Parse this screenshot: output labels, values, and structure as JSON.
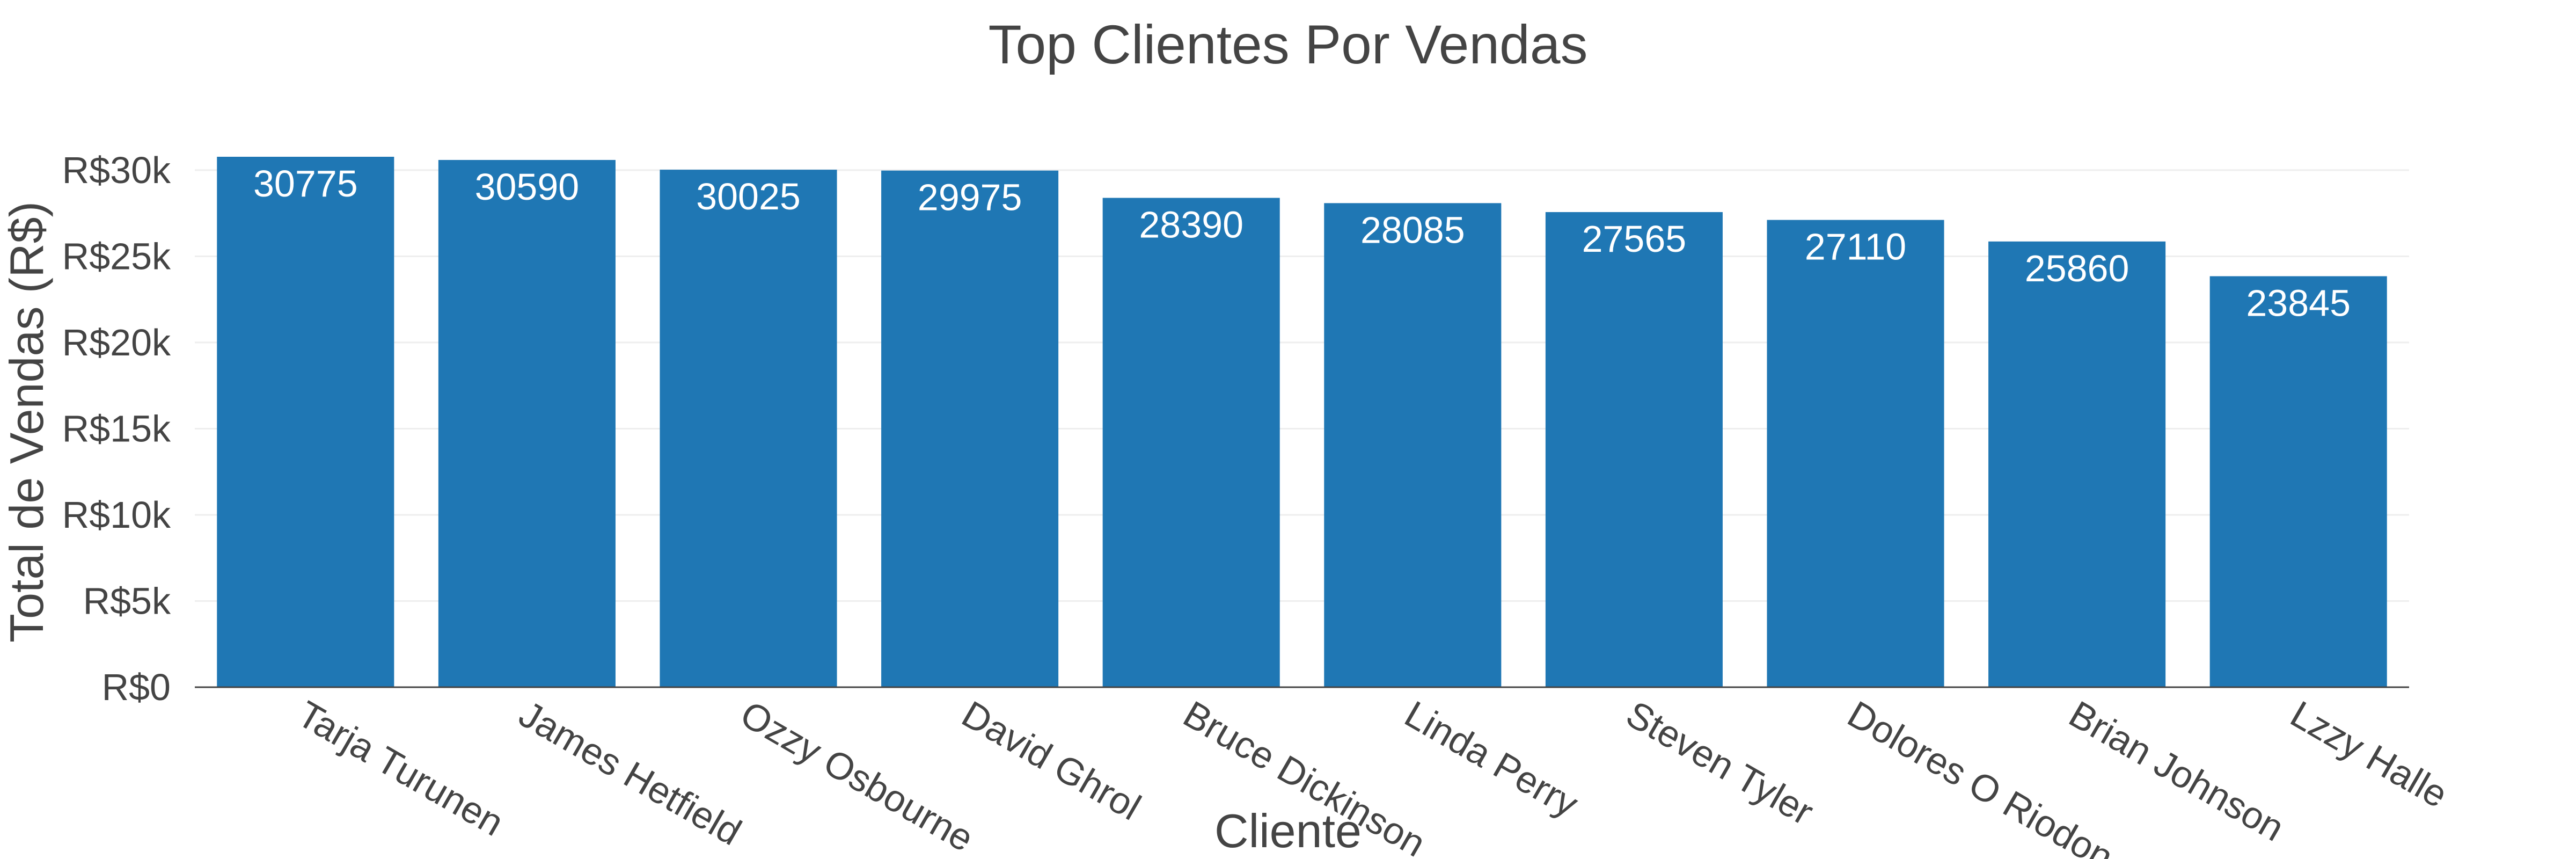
{
  "chart_data": {
    "type": "bar",
    "title": "Top Clientes Por Vendas",
    "xlabel": "Cliente",
    "ylabel": "Total de Vendas (R$)",
    "categories": [
      "Tarja Turunen",
      "James Hetfield",
      "Ozzy Osbourne",
      "David Ghrol",
      "Bruce Dickinson",
      "Linda Perry",
      "Steven Tyler",
      "Dolores O Riodon",
      "Brian Johnson",
      "Lzzy Halle"
    ],
    "values": [
      30775,
      30590,
      30025,
      29975,
      28390,
      28085,
      27565,
      27110,
      25860,
      23845
    ],
    "data_labels": [
      "30775",
      "30590",
      "30025",
      "29975",
      "28390",
      "28085",
      "27565",
      "27110",
      "25860",
      "23845"
    ],
    "ylim": [
      0,
      30775
    ],
    "yticks": [
      0,
      5000,
      10000,
      15000,
      20000,
      25000,
      30000
    ],
    "ytick_labels": [
      "R$0",
      "R$5k",
      "R$10k",
      "R$15k",
      "R$20k",
      "R$25k",
      "R$30k"
    ],
    "bar_color": "#1f77b4",
    "grid": true,
    "legend": false
  }
}
